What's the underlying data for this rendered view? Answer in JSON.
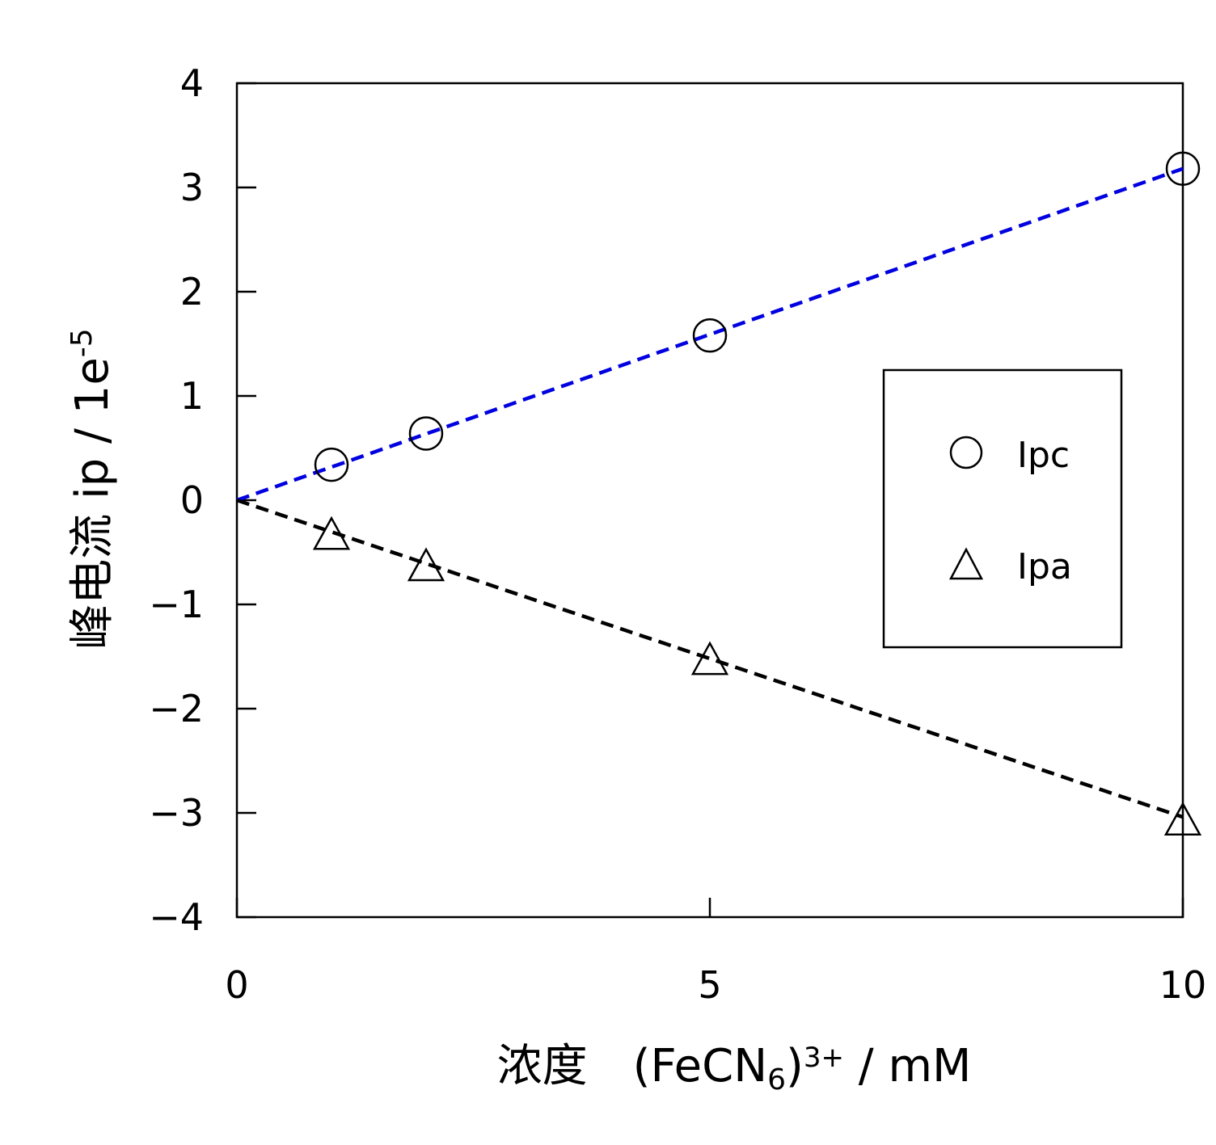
{
  "chart_data": {
    "type": "scatter",
    "x_axis": {
      "range": [
        0,
        10
      ],
      "ticks": [
        0,
        5,
        10
      ],
      "tick_labels": [
        "0",
        "5",
        "10"
      ],
      "label_main": "浓度　(FeCN",
      "label_sub": "6",
      "label_close": ")",
      "label_sup": "3+",
      "label_unit": " / mM"
    },
    "y_axis": {
      "range": [
        -4,
        4
      ],
      "ticks": [
        -4,
        -3,
        -2,
        -1,
        0,
        1,
        2,
        3,
        4
      ],
      "tick_labels": [
        "−4",
        "−3",
        "−2",
        "−1",
        "0",
        "1",
        "2",
        "3",
        "4"
      ],
      "label_main": "峰电流 ip / 1e",
      "label_sup": "-5"
    },
    "series": [
      {
        "name": "Ipc",
        "marker": "circle",
        "x": [
          1,
          2,
          5,
          10
        ],
        "y": [
          0.34,
          0.64,
          1.58,
          3.18
        ],
        "fit": {
          "x": [
            0,
            10
          ],
          "y": [
            0,
            3.18
          ],
          "color": "#0000e0",
          "style": "dashed"
        }
      },
      {
        "name": "Ipa",
        "marker": "triangle",
        "x": [
          1,
          2,
          5,
          10
        ],
        "y": [
          -0.32,
          -0.62,
          -1.52,
          -3.06
        ],
        "fit": {
          "x": [
            0,
            10
          ],
          "y": [
            0,
            -3.04
          ],
          "color": "#000000",
          "style": "dashed"
        }
      }
    ],
    "legend": {
      "placement": "right-middle"
    },
    "grid": false
  }
}
